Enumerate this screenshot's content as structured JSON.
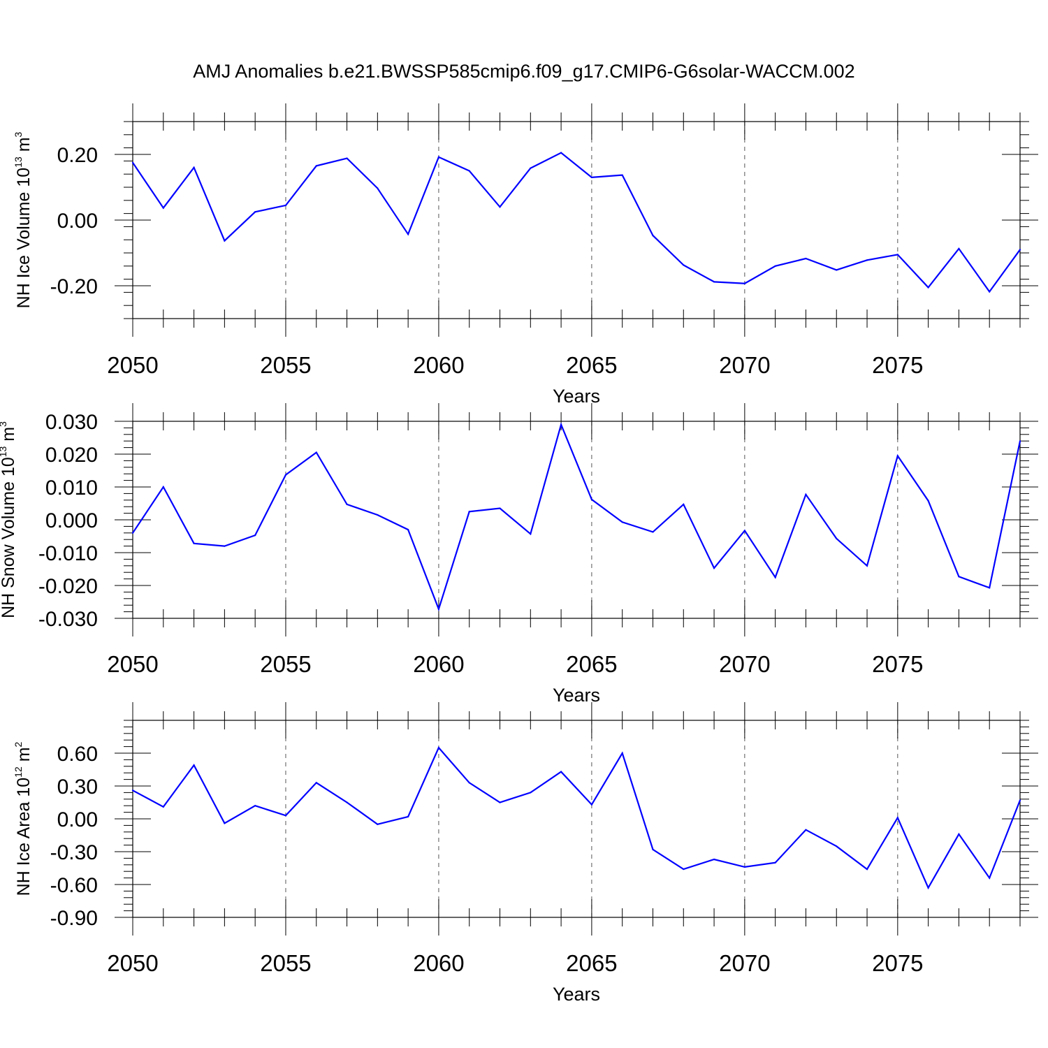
{
  "title": "AMJ Anomalies b.e21.BWSSP585cmip6.f09_g17.CMIP6-G6solar-WACCM.002",
  "colors": {
    "line": "#0000ff",
    "axis": "#000000",
    "grid": "#555555"
  },
  "chart_data": [
    {
      "type": "line",
      "xlabel": "Years",
      "ylabel": {
        "text": "NH Ice Volume 10",
        "exp": "13",
        "unit": " m",
        "unit_exp": "3"
      },
      "xlim": [
        2050,
        2079
      ],
      "ylim": [
        -0.3,
        0.3
      ],
      "xticks": [
        2050,
        2055,
        2060,
        2065,
        2070,
        2075
      ],
      "yticks": [
        -0.2,
        0.0,
        0.2
      ],
      "ytick_labels": [
        "-0.20",
        "0.00",
        "0.20"
      ],
      "grid": "vertical dashed at major x ticks",
      "x": [
        2050,
        2051,
        2052,
        2053,
        2054,
        2055,
        2056,
        2057,
        2058,
        2059,
        2060,
        2061,
        2062,
        2063,
        2064,
        2065,
        2066,
        2067,
        2068,
        2069,
        2070,
        2071,
        2072,
        2073,
        2074,
        2075,
        2076,
        2077,
        2078,
        2079
      ],
      "values": [
        0.175,
        0.037,
        0.16,
        -0.063,
        0.025,
        0.045,
        0.165,
        0.188,
        0.097,
        -0.043,
        0.192,
        0.15,
        0.04,
        0.158,
        0.205,
        0.13,
        0.137,
        -0.047,
        -0.137,
        -0.188,
        -0.193,
        -0.14,
        -0.117,
        -0.152,
        -0.122,
        -0.105,
        -0.205,
        -0.087,
        -0.218,
        -0.09
      ]
    },
    {
      "type": "line",
      "xlabel": "Years",
      "ylabel": {
        "text": "NH Snow Volume 10",
        "exp": "13",
        "unit": " m",
        "unit_exp": "3"
      },
      "xlim": [
        2050,
        2079
      ],
      "ylim": [
        -0.03,
        0.03
      ],
      "xticks": [
        2050,
        2055,
        2060,
        2065,
        2070,
        2075
      ],
      "yticks": [
        -0.03,
        -0.02,
        -0.01,
        0.0,
        0.01,
        0.02,
        0.03
      ],
      "ytick_labels": [
        "-0.030",
        "-0.020",
        "-0.010",
        "0.000",
        "0.010",
        "0.020",
        "0.030"
      ],
      "grid": "vertical dashed at major x ticks",
      "x": [
        2050,
        2051,
        2052,
        2053,
        2054,
        2055,
        2056,
        2057,
        2058,
        2059,
        2060,
        2061,
        2062,
        2063,
        2064,
        2065,
        2066,
        2067,
        2068,
        2069,
        2070,
        2071,
        2072,
        2073,
        2074,
        2075,
        2076,
        2077,
        2078,
        2079
      ],
      "values": [
        -0.004,
        0.01,
        -0.0072,
        -0.008,
        -0.0047,
        0.0137,
        0.0205,
        0.0047,
        0.0015,
        -0.003,
        -0.0272,
        0.0025,
        0.0035,
        -0.0043,
        0.029,
        0.0062,
        -0.0007,
        -0.0037,
        0.0047,
        -0.0147,
        -0.0033,
        -0.0175,
        0.0077,
        -0.0057,
        -0.014,
        0.0195,
        0.0058,
        -0.0173,
        -0.0207,
        0.024
      ]
    },
    {
      "type": "line",
      "xlabel": "Years",
      "ylabel": {
        "text": "NH Ice Area 10",
        "exp": "12",
        "unit": " m",
        "unit_exp": "2"
      },
      "xlim": [
        2050,
        2079
      ],
      "ylim": [
        -0.9,
        0.9
      ],
      "xticks": [
        2050,
        2055,
        2060,
        2065,
        2070,
        2075
      ],
      "yticks": [
        -0.9,
        -0.6,
        -0.3,
        0.0,
        0.3,
        0.6
      ],
      "ytick_labels": [
        "-0.90",
        "-0.60",
        "-0.30",
        "0.00",
        "0.30",
        "0.60"
      ],
      "grid": "vertical dashed at major x ticks",
      "x": [
        2050,
        2051,
        2052,
        2053,
        2054,
        2055,
        2056,
        2057,
        2058,
        2059,
        2060,
        2061,
        2062,
        2063,
        2064,
        2065,
        2066,
        2067,
        2068,
        2069,
        2070,
        2071,
        2072,
        2073,
        2074,
        2075,
        2076,
        2077,
        2078,
        2079
      ],
      "values": [
        0.26,
        0.11,
        0.49,
        -0.04,
        0.12,
        0.03,
        0.33,
        0.15,
        -0.05,
        0.02,
        0.65,
        0.33,
        0.15,
        0.24,
        0.43,
        0.13,
        0.6,
        -0.28,
        -0.46,
        -0.37,
        -0.44,
        -0.4,
        -0.1,
        -0.25,
        -0.46,
        0.01,
        -0.63,
        -0.14,
        -0.54,
        0.17
      ]
    }
  ]
}
